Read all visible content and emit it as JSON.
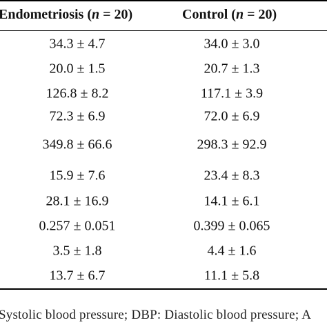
{
  "table": {
    "header": {
      "endometriosis": {
        "label": "Endometriosis (",
        "n_symbol": "n",
        "count": " = 20)"
      },
      "control": {
        "label": "Control (",
        "n_symbol": "n",
        "count": " = 20)"
      }
    },
    "rows": [
      {
        "endometriosis": "34.3 ± 4.7",
        "control": "34.0 ± 3.0"
      },
      {
        "endometriosis": "20.0 ± 1.5",
        "control": "20.7 ± 1.3"
      },
      {
        "endometriosis": "126.8 ± 8.2",
        "control": "117.1 ± 3.9"
      },
      {
        "endometriosis": "72.3 ± 6.9",
        "control": "72.0 ± 6.9"
      },
      {
        "endometriosis": "349.8 ± 66.6",
        "control": "298.3 ± 92.9"
      },
      {
        "endometriosis": "15.9 ± 7.6",
        "control": "23.4 ± 8.3"
      },
      {
        "endometriosis": "28.1 ± 16.9",
        "control": "14.1 ± 6.1"
      },
      {
        "endometriosis": "0.257 ± 0.051",
        "control": "0.399 ± 0.065"
      },
      {
        "endometriosis": "3.5 ± 1.8",
        "control": "4.4 ± 1.6"
      },
      {
        "endometriosis": "13.7 ± 6.7",
        "control": "11.1 ± 5.8"
      }
    ]
  },
  "footnote": "Systolic blood pressure; DBP: Diastolic blood pressure; A"
}
